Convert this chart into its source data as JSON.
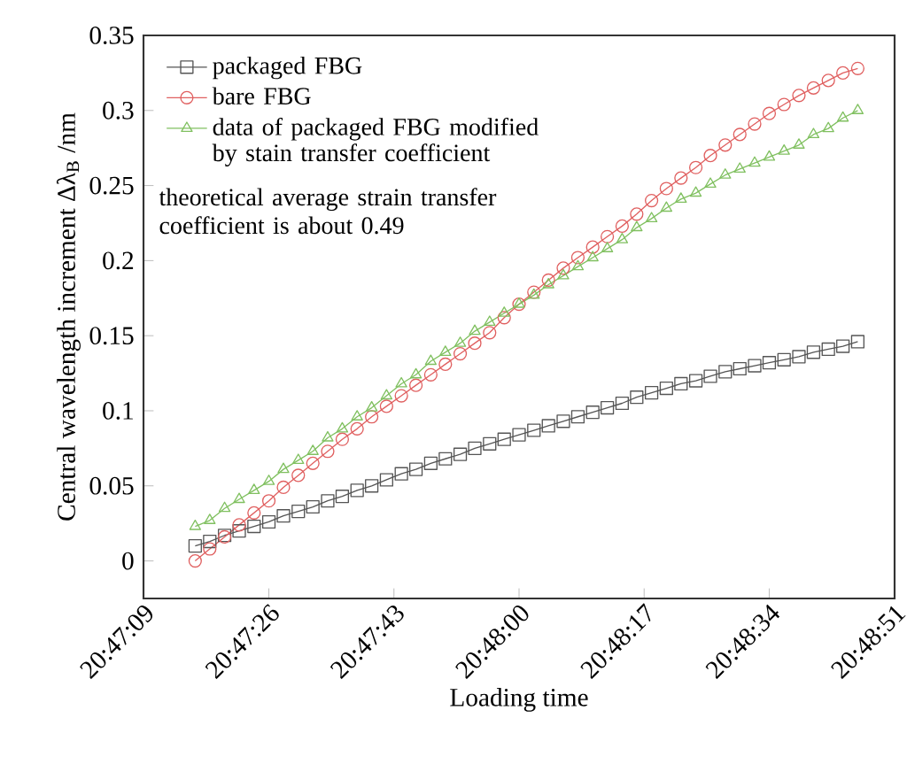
{
  "chart_data": {
    "type": "line",
    "xlabel": "Loading time",
    "ylabel": "Central wavelength increment Δλ$_{B}$ /nm",
    "x": [
      20.78778,
      20.78833,
      20.78889,
      20.78944,
      20.79,
      20.79056,
      20.79111,
      20.79167,
      20.79222,
      20.79278,
      20.79333,
      20.79389,
      20.79444,
      20.795,
      20.79556,
      20.79611,
      20.79667,
      20.79722,
      20.79778,
      20.79833,
      20.79889,
      20.79944,
      20.8,
      20.80056,
      20.80111,
      20.80167,
      20.80222,
      20.80278,
      20.80333,
      20.80389,
      20.80444,
      20.805,
      20.80556,
      20.80611,
      20.80667,
      20.80722,
      20.80778,
      20.80833,
      20.80889,
      20.80944,
      20.81,
      20.81056,
      20.81111,
      20.81167,
      20.81222,
      20.81278
    ],
    "series": [
      {
        "name": "packaged FBG",
        "color": "#555555",
        "marker": "square",
        "values": [
          0.01,
          0.013,
          0.017,
          0.02,
          0.023,
          0.026,
          0.03,
          0.033,
          0.036,
          0.04,
          0.043,
          0.047,
          0.05,
          0.054,
          0.058,
          0.061,
          0.065,
          0.068,
          0.071,
          0.075,
          0.078,
          0.081,
          0.084,
          0.087,
          0.09,
          0.093,
          0.096,
          0.099,
          0.102,
          0.105,
          0.109,
          0.112,
          0.115,
          0.118,
          0.12,
          0.123,
          0.126,
          0.128,
          0.13,
          0.132,
          0.134,
          0.136,
          0.139,
          0.141,
          0.143,
          0.146
        ]
      },
      {
        "name": "bare FBG",
        "color": "#e06060",
        "marker": "circle",
        "values": [
          0.0,
          0.008,
          0.016,
          0.024,
          0.032,
          0.04,
          0.049,
          0.057,
          0.065,
          0.073,
          0.081,
          0.088,
          0.096,
          0.103,
          0.11,
          0.117,
          0.124,
          0.131,
          0.138,
          0.145,
          0.152,
          0.162,
          0.171,
          0.179,
          0.187,
          0.195,
          0.202,
          0.209,
          0.216,
          0.223,
          0.231,
          0.24,
          0.248,
          0.255,
          0.262,
          0.27,
          0.277,
          0.284,
          0.291,
          0.298,
          0.304,
          0.31,
          0.315,
          0.32,
          0.325,
          0.328
        ]
      },
      {
        "name": "data of packaged FBG modified by stain transfer coefficient",
        "color": "#80c060",
        "marker": "triangle",
        "values": [
          0.023,
          0.027,
          0.035,
          0.041,
          0.047,
          0.053,
          0.061,
          0.067,
          0.073,
          0.082,
          0.088,
          0.096,
          0.102,
          0.11,
          0.118,
          0.124,
          0.133,
          0.139,
          0.145,
          0.153,
          0.159,
          0.165,
          0.171,
          0.177,
          0.184,
          0.19,
          0.196,
          0.202,
          0.208,
          0.214,
          0.222,
          0.228,
          0.235,
          0.241,
          0.245,
          0.251,
          0.257,
          0.261,
          0.265,
          0.269,
          0.273,
          0.277,
          0.284,
          0.288,
          0.295,
          0.3
        ]
      }
    ],
    "annotations": [
      "theoretical average strain transfer coefficient is about 0.49"
    ],
    "xlim": [
      20.78583,
      20.81417
    ],
    "xticks": [
      {
        "value": 20.78583,
        "label": "20:47:09"
      },
      {
        "value": 20.79056,
        "label": "20:47:26"
      },
      {
        "value": 20.79528,
        "label": "20:47:43"
      },
      {
        "value": 20.8,
        "label": "20:48:00"
      },
      {
        "value": 20.80472,
        "label": "20:48:17"
      },
      {
        "value": 20.80944,
        "label": "20:48:34"
      },
      {
        "value": 20.81417,
        "label": "20:48:51"
      }
    ],
    "ylim": [
      -0.025,
      0.35
    ],
    "yticks": [
      0,
      0.05,
      0.1,
      0.15,
      0.2,
      0.25,
      0.3,
      0.35
    ],
    "legend": "top left",
    "line_style": "solid"
  }
}
